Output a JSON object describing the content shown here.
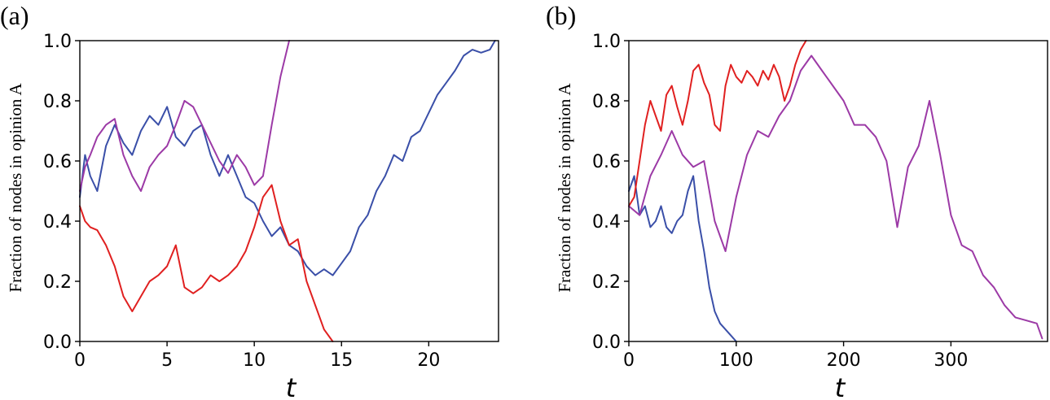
{
  "chart_data": [
    {
      "panel_label": "(a)",
      "type": "line",
      "xlabel": "t",
      "ylabel": "Fraction of nodes in opinion A",
      "xlim": [
        0,
        24
      ],
      "ylim": [
        0.0,
        1.0
      ],
      "xticks": [
        "0",
        "5",
        "10",
        "15",
        "20"
      ],
      "yticks": [
        "0.0",
        "0.2",
        "0.4",
        "0.6",
        "0.8",
        "1.0"
      ],
      "series": [
        {
          "color": "#3a4fa8",
          "x": [
            0,
            0.3,
            0.6,
            1,
            1.5,
            2,
            2.5,
            3,
            3.5,
            4,
            4.5,
            5,
            5.5,
            6,
            6.5,
            7,
            7.5,
            8,
            8.5,
            9,
            9.5,
            10,
            10.5,
            11,
            11.5,
            12,
            12.5,
            13,
            13.5,
            14,
            14.5,
            15,
            15.5,
            16,
            16.5,
            17,
            17.5,
            18,
            18.5,
            19,
            19.5,
            20,
            20.5,
            21,
            21.5,
            22,
            22.5,
            23,
            23.5,
            23.8
          ],
          "y": [
            0.48,
            0.62,
            0.55,
            0.5,
            0.65,
            0.72,
            0.66,
            0.62,
            0.7,
            0.75,
            0.72,
            0.78,
            0.68,
            0.65,
            0.7,
            0.72,
            0.62,
            0.55,
            0.62,
            0.55,
            0.48,
            0.46,
            0.4,
            0.35,
            0.38,
            0.32,
            0.3,
            0.25,
            0.22,
            0.24,
            0.22,
            0.26,
            0.3,
            0.38,
            0.42,
            0.5,
            0.55,
            0.62,
            0.6,
            0.68,
            0.7,
            0.76,
            0.82,
            0.86,
            0.9,
            0.95,
            0.97,
            0.96,
            0.97,
            1.0
          ]
        },
        {
          "color": "#9c3aa6",
          "x": [
            0,
            0.3,
            0.6,
            1,
            1.5,
            2,
            2.5,
            3,
            3.5,
            4,
            4.5,
            5,
            5.5,
            6,
            6.5,
            7,
            7.5,
            8,
            8.5,
            9,
            9.5,
            10,
            10.5,
            11,
            11.5,
            12
          ],
          "y": [
            0.5,
            0.58,
            0.62,
            0.68,
            0.72,
            0.74,
            0.62,
            0.55,
            0.5,
            0.58,
            0.62,
            0.65,
            0.72,
            0.8,
            0.78,
            0.72,
            0.66,
            0.6,
            0.56,
            0.62,
            0.58,
            0.52,
            0.55,
            0.72,
            0.88,
            1.0
          ]
        },
        {
          "color": "#e02020",
          "x": [
            0,
            0.3,
            0.6,
            1,
            1.5,
            2,
            2.5,
            3,
            3.5,
            4,
            4.5,
            5,
            5.5,
            6,
            6.5,
            7,
            7.5,
            8,
            8.5,
            9,
            9.5,
            10,
            10.5,
            11,
            11.5,
            12,
            12.5,
            13,
            13.5,
            14,
            14.5
          ],
          "y": [
            0.45,
            0.4,
            0.38,
            0.37,
            0.32,
            0.25,
            0.15,
            0.1,
            0.15,
            0.2,
            0.22,
            0.25,
            0.32,
            0.18,
            0.16,
            0.18,
            0.22,
            0.2,
            0.22,
            0.25,
            0.3,
            0.38,
            0.48,
            0.52,
            0.4,
            0.32,
            0.34,
            0.2,
            0.12,
            0.04,
            0.0
          ]
        }
      ]
    },
    {
      "panel_label": "(b)",
      "type": "line",
      "xlabel": "t",
      "ylabel": "Fraction of nodes in opinion A",
      "xlim": [
        0,
        390
      ],
      "ylim": [
        0.0,
        1.0
      ],
      "xticks": [
        "0",
        "100",
        "200",
        "300"
      ],
      "yticks": [
        "0.0",
        "0.2",
        "0.4",
        "0.6",
        "0.8",
        "1.0"
      ],
      "series": [
        {
          "color": "#3a4fa8",
          "x": [
            0,
            5,
            10,
            15,
            20,
            25,
            30,
            35,
            40,
            45,
            50,
            55,
            60,
            65,
            70,
            75,
            80,
            85,
            90,
            95,
            100
          ],
          "y": [
            0.5,
            0.55,
            0.42,
            0.45,
            0.38,
            0.4,
            0.45,
            0.38,
            0.36,
            0.4,
            0.42,
            0.5,
            0.55,
            0.4,
            0.3,
            0.18,
            0.1,
            0.06,
            0.04,
            0.02,
            0.0
          ]
        },
        {
          "color": "#e02020",
          "x": [
            0,
            5,
            10,
            15,
            20,
            25,
            30,
            35,
            40,
            45,
            50,
            55,
            60,
            65,
            70,
            75,
            80,
            85,
            90,
            95,
            100,
            105,
            110,
            115,
            120,
            125,
            130,
            135,
            140,
            145,
            150,
            155,
            160,
            165
          ],
          "y": [
            0.45,
            0.48,
            0.6,
            0.72,
            0.8,
            0.75,
            0.7,
            0.82,
            0.85,
            0.78,
            0.72,
            0.8,
            0.9,
            0.92,
            0.86,
            0.82,
            0.72,
            0.7,
            0.85,
            0.92,
            0.88,
            0.86,
            0.9,
            0.88,
            0.85,
            0.9,
            0.87,
            0.92,
            0.88,
            0.8,
            0.85,
            0.92,
            0.97,
            1.0
          ]
        },
        {
          "color": "#9c3aa6",
          "x": [
            0,
            10,
            20,
            30,
            40,
            50,
            60,
            70,
            80,
            90,
            100,
            110,
            120,
            130,
            140,
            150,
            160,
            170,
            180,
            190,
            200,
            210,
            220,
            230,
            240,
            250,
            260,
            270,
            280,
            290,
            300,
            310,
            320,
            330,
            340,
            350,
            360,
            370,
            380,
            385
          ],
          "y": [
            0.45,
            0.42,
            0.55,
            0.62,
            0.7,
            0.62,
            0.58,
            0.6,
            0.4,
            0.3,
            0.48,
            0.62,
            0.7,
            0.68,
            0.75,
            0.8,
            0.9,
            0.95,
            0.9,
            0.85,
            0.8,
            0.72,
            0.72,
            0.68,
            0.6,
            0.38,
            0.58,
            0.65,
            0.8,
            0.62,
            0.42,
            0.32,
            0.3,
            0.22,
            0.18,
            0.12,
            0.08,
            0.07,
            0.06,
            0.01
          ]
        }
      ]
    }
  ]
}
